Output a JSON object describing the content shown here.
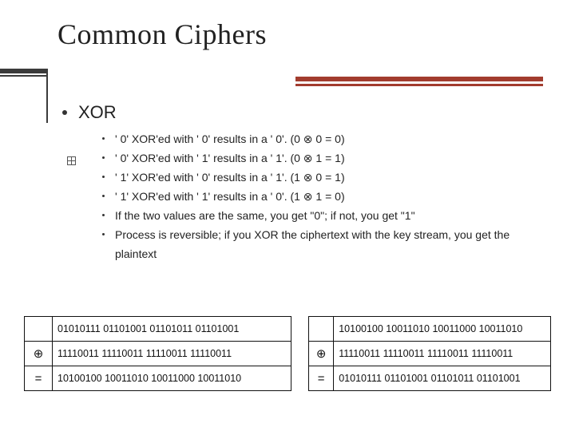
{
  "title": "Common Ciphers",
  "main_bullet": "XOR",
  "sub_bullets": [
    "' 0'  XOR'ed  with ' 0' results in a ' 0'. (0 ⊗ 0 = 0)",
    "' 0'  XOR'ed  with ' 1' results in a ' 1'. (0 ⊗ 1 = 1)",
    "' 1'  XOR'ed  with ' 0' results in a ' 1'. (1 ⊗ 0 = 1)",
    "' 1'  XOR'ed  with ' 1' results in a ' 0'. (1 ⊗ 1 = 0)",
    "If the two values are the same, you get \"0\"; if not, you get \"1\"",
    "Process is reversible; if you XOR the ciphertext with the key stream, you get the plaintext"
  ],
  "xor_symbol": "⊕",
  "eq_symbol": "=",
  "left_table": {
    "r1": "01010111 01101001 01101011 01101001",
    "r2": "11110011 11110011 11110011 11110011",
    "r3": "10100100 10011010 10011000 10011010"
  },
  "right_table": {
    "r1": "10100100 10011010 10011000 10011010",
    "r2": "11110011 11110011 11110011 11110011",
    "r3": "01010111 01101001 01101011 01101001"
  },
  "colors": {
    "accent": "#a23c2e",
    "line": "#3b3b3b",
    "text": "#222222",
    "border": "#111111",
    "background": "#ffffff"
  },
  "fonts": {
    "title_family": "Times New Roman",
    "title_size_pt": 28,
    "body_family": "Arial",
    "main_bullet_size_pt": 17,
    "sub_bullet_size_pt": 11,
    "table_size_pt": 10
  }
}
